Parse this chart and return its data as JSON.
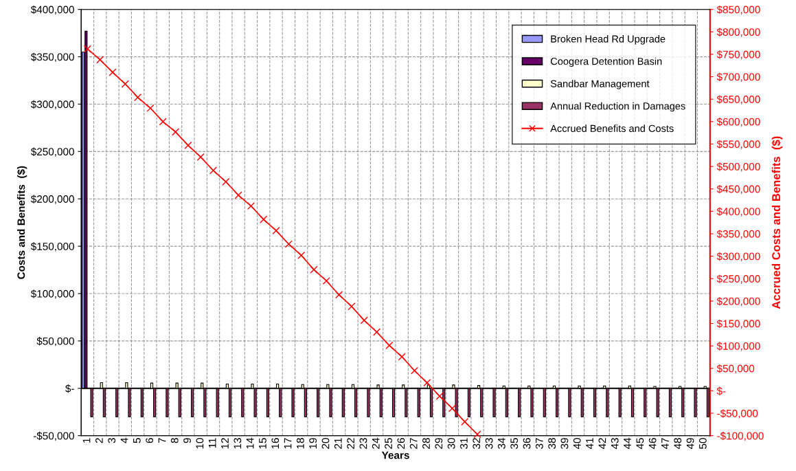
{
  "chart_data": {
    "type": "bar",
    "xlabel": "Years",
    "ylabel": "Costs and Benefits  ($)",
    "y2label": "Accrued Costs and Benefits  ($)",
    "categories": [
      "1",
      "2",
      "3",
      "4",
      "5",
      "6",
      "7",
      "8",
      "9",
      "10",
      "11",
      "12",
      "13",
      "14",
      "15",
      "16",
      "17",
      "18",
      "19",
      "20",
      "21",
      "22",
      "23",
      "24",
      "25",
      "26",
      "27",
      "28",
      "29",
      "30",
      "31",
      "32",
      "33",
      "34",
      "35",
      "36",
      "37",
      "38",
      "39",
      "40",
      "41",
      "42",
      "43",
      "44",
      "45",
      "46",
      "47",
      "48",
      "49",
      "50"
    ],
    "series": [
      {
        "name": "Broken Head Rd Upgrade",
        "color": "#9999ff",
        "values": [
          355000,
          null,
          null,
          null,
          null,
          null,
          null,
          null,
          null,
          null,
          null,
          null,
          null,
          null,
          null,
          null,
          null,
          null,
          null,
          null,
          null,
          null,
          null,
          null,
          null,
          null,
          null,
          null,
          null,
          null,
          null,
          null,
          null,
          null,
          null,
          null,
          null,
          null,
          null,
          null,
          null,
          null,
          null,
          null,
          null,
          null,
          null,
          null,
          null,
          null
        ]
      },
      {
        "name": "Coogera Detention Basin",
        "color": "#660066",
        "values": [
          377000,
          null,
          null,
          null,
          null,
          null,
          null,
          null,
          null,
          null,
          null,
          null,
          null,
          null,
          null,
          null,
          null,
          null,
          null,
          null,
          null,
          null,
          null,
          null,
          null,
          null,
          null,
          null,
          null,
          null,
          null,
          null,
          null,
          null,
          null,
          null,
          null,
          null,
          null,
          null,
          null,
          null,
          null,
          null,
          null,
          null,
          null,
          null,
          null,
          null
        ]
      },
      {
        "name": "Sandbar Management",
        "color": "#ffffcc",
        "values": [
          null,
          6000,
          null,
          6000,
          null,
          5500,
          null,
          5500,
          null,
          5500,
          null,
          4500,
          null,
          4500,
          null,
          4500,
          null,
          4000,
          null,
          4000,
          null,
          4000,
          null,
          3500,
          null,
          3500,
          null,
          3500,
          null,
          3500,
          null,
          3000,
          null,
          2500,
          null,
          2500,
          null,
          2500,
          null,
          2500,
          null,
          2500,
          null,
          2500,
          null,
          2000,
          null,
          2000,
          null,
          2000
        ]
      },
      {
        "name": "Annual Reduction in Damages",
        "color": "#993366",
        "values": [
          -30000,
          -30000,
          -30000,
          -30000,
          -30000,
          -30000,
          -30000,
          -30000,
          -30000,
          -30000,
          -30000,
          -30000,
          -30000,
          -30000,
          -30000,
          -30000,
          -30000,
          -30000,
          -30000,
          -30000,
          -30000,
          -30000,
          -30000,
          -30000,
          -30000,
          -30000,
          -30000,
          -30000,
          -30000,
          -30000,
          -30000,
          -30000,
          -30000,
          -30000,
          -30000,
          -30000,
          -30000,
          -30000,
          -30000,
          -30000,
          -30000,
          -30000,
          -30000,
          -30000,
          -30000,
          -30000,
          -30000,
          -30000,
          -30000,
          -30000
        ]
      },
      {
        "name": "Accrued Benefits and Costs",
        "type": "line",
        "axis": "y2",
        "marker": "cross",
        "line_style": "solid",
        "color": "#ff0000",
        "values": [
          762000,
          738000,
          710000,
          684000,
          654000,
          630000,
          600000,
          577000,
          547000,
          521000,
          491000,
          466000,
          436000,
          412000,
          382000,
          357000,
          327000,
          302000,
          270000,
          245000,
          214000,
          188000,
          157000,
          131000,
          101000,
          76000,
          45000,
          18000,
          -12000,
          -39000,
          -69000,
          -97000,
          null,
          null,
          null,
          null,
          null,
          null,
          null,
          null,
          null,
          null,
          null,
          null,
          null,
          null,
          null,
          null,
          null,
          null
        ]
      }
    ],
    "ylim": [
      -50000,
      400000
    ],
    "yticks": [
      {
        "value": -50000,
        "label": "-$50,000"
      },
      {
        "value": 0,
        "label": "$-"
      },
      {
        "value": 50000,
        "label": "$50,000"
      },
      {
        "value": 100000,
        "label": "$100,000"
      },
      {
        "value": 150000,
        "label": "$150,000"
      },
      {
        "value": 200000,
        "label": "$200,000"
      },
      {
        "value": 250000,
        "label": "$250,000"
      },
      {
        "value": 300000,
        "label": "$300,000"
      },
      {
        "value": 350000,
        "label": "$350,000"
      },
      {
        "value": 400000,
        "label": "$400,000"
      }
    ],
    "y2lim": [
      -100000,
      850000
    ],
    "y2ticks": [
      {
        "value": -100000,
        "label": "-$100,000"
      },
      {
        "value": -50000,
        "label": "-$50,000"
      },
      {
        "value": 0,
        "label": "$-"
      },
      {
        "value": 50000,
        "label": "$50,000"
      },
      {
        "value": 100000,
        "label": "$100,000"
      },
      {
        "value": 150000,
        "label": "$150,000"
      },
      {
        "value": 200000,
        "label": "$200,000"
      },
      {
        "value": 250000,
        "label": "$250,000"
      },
      {
        "value": 300000,
        "label": "$300,000"
      },
      {
        "value": 350000,
        "label": "$350,000"
      },
      {
        "value": 400000,
        "label": "$400,000"
      },
      {
        "value": 450000,
        "label": "$450,000"
      },
      {
        "value": 500000,
        "label": "$500,000"
      },
      {
        "value": 550000,
        "label": "$550,000"
      },
      {
        "value": 600000,
        "label": "$600,000"
      },
      {
        "value": 650000,
        "label": "$650,000"
      },
      {
        "value": 700000,
        "label": "$700,000"
      },
      {
        "value": 750000,
        "label": "$750,000"
      },
      {
        "value": 800000,
        "label": "$800,000"
      },
      {
        "value": 850000,
        "label": "$850,000"
      }
    ],
    "ref_lines": [
      {
        "axis": "y",
        "value": 0,
        "color": "#000000",
        "line_style": "solid"
      }
    ],
    "grid": true,
    "legend": "top right"
  }
}
